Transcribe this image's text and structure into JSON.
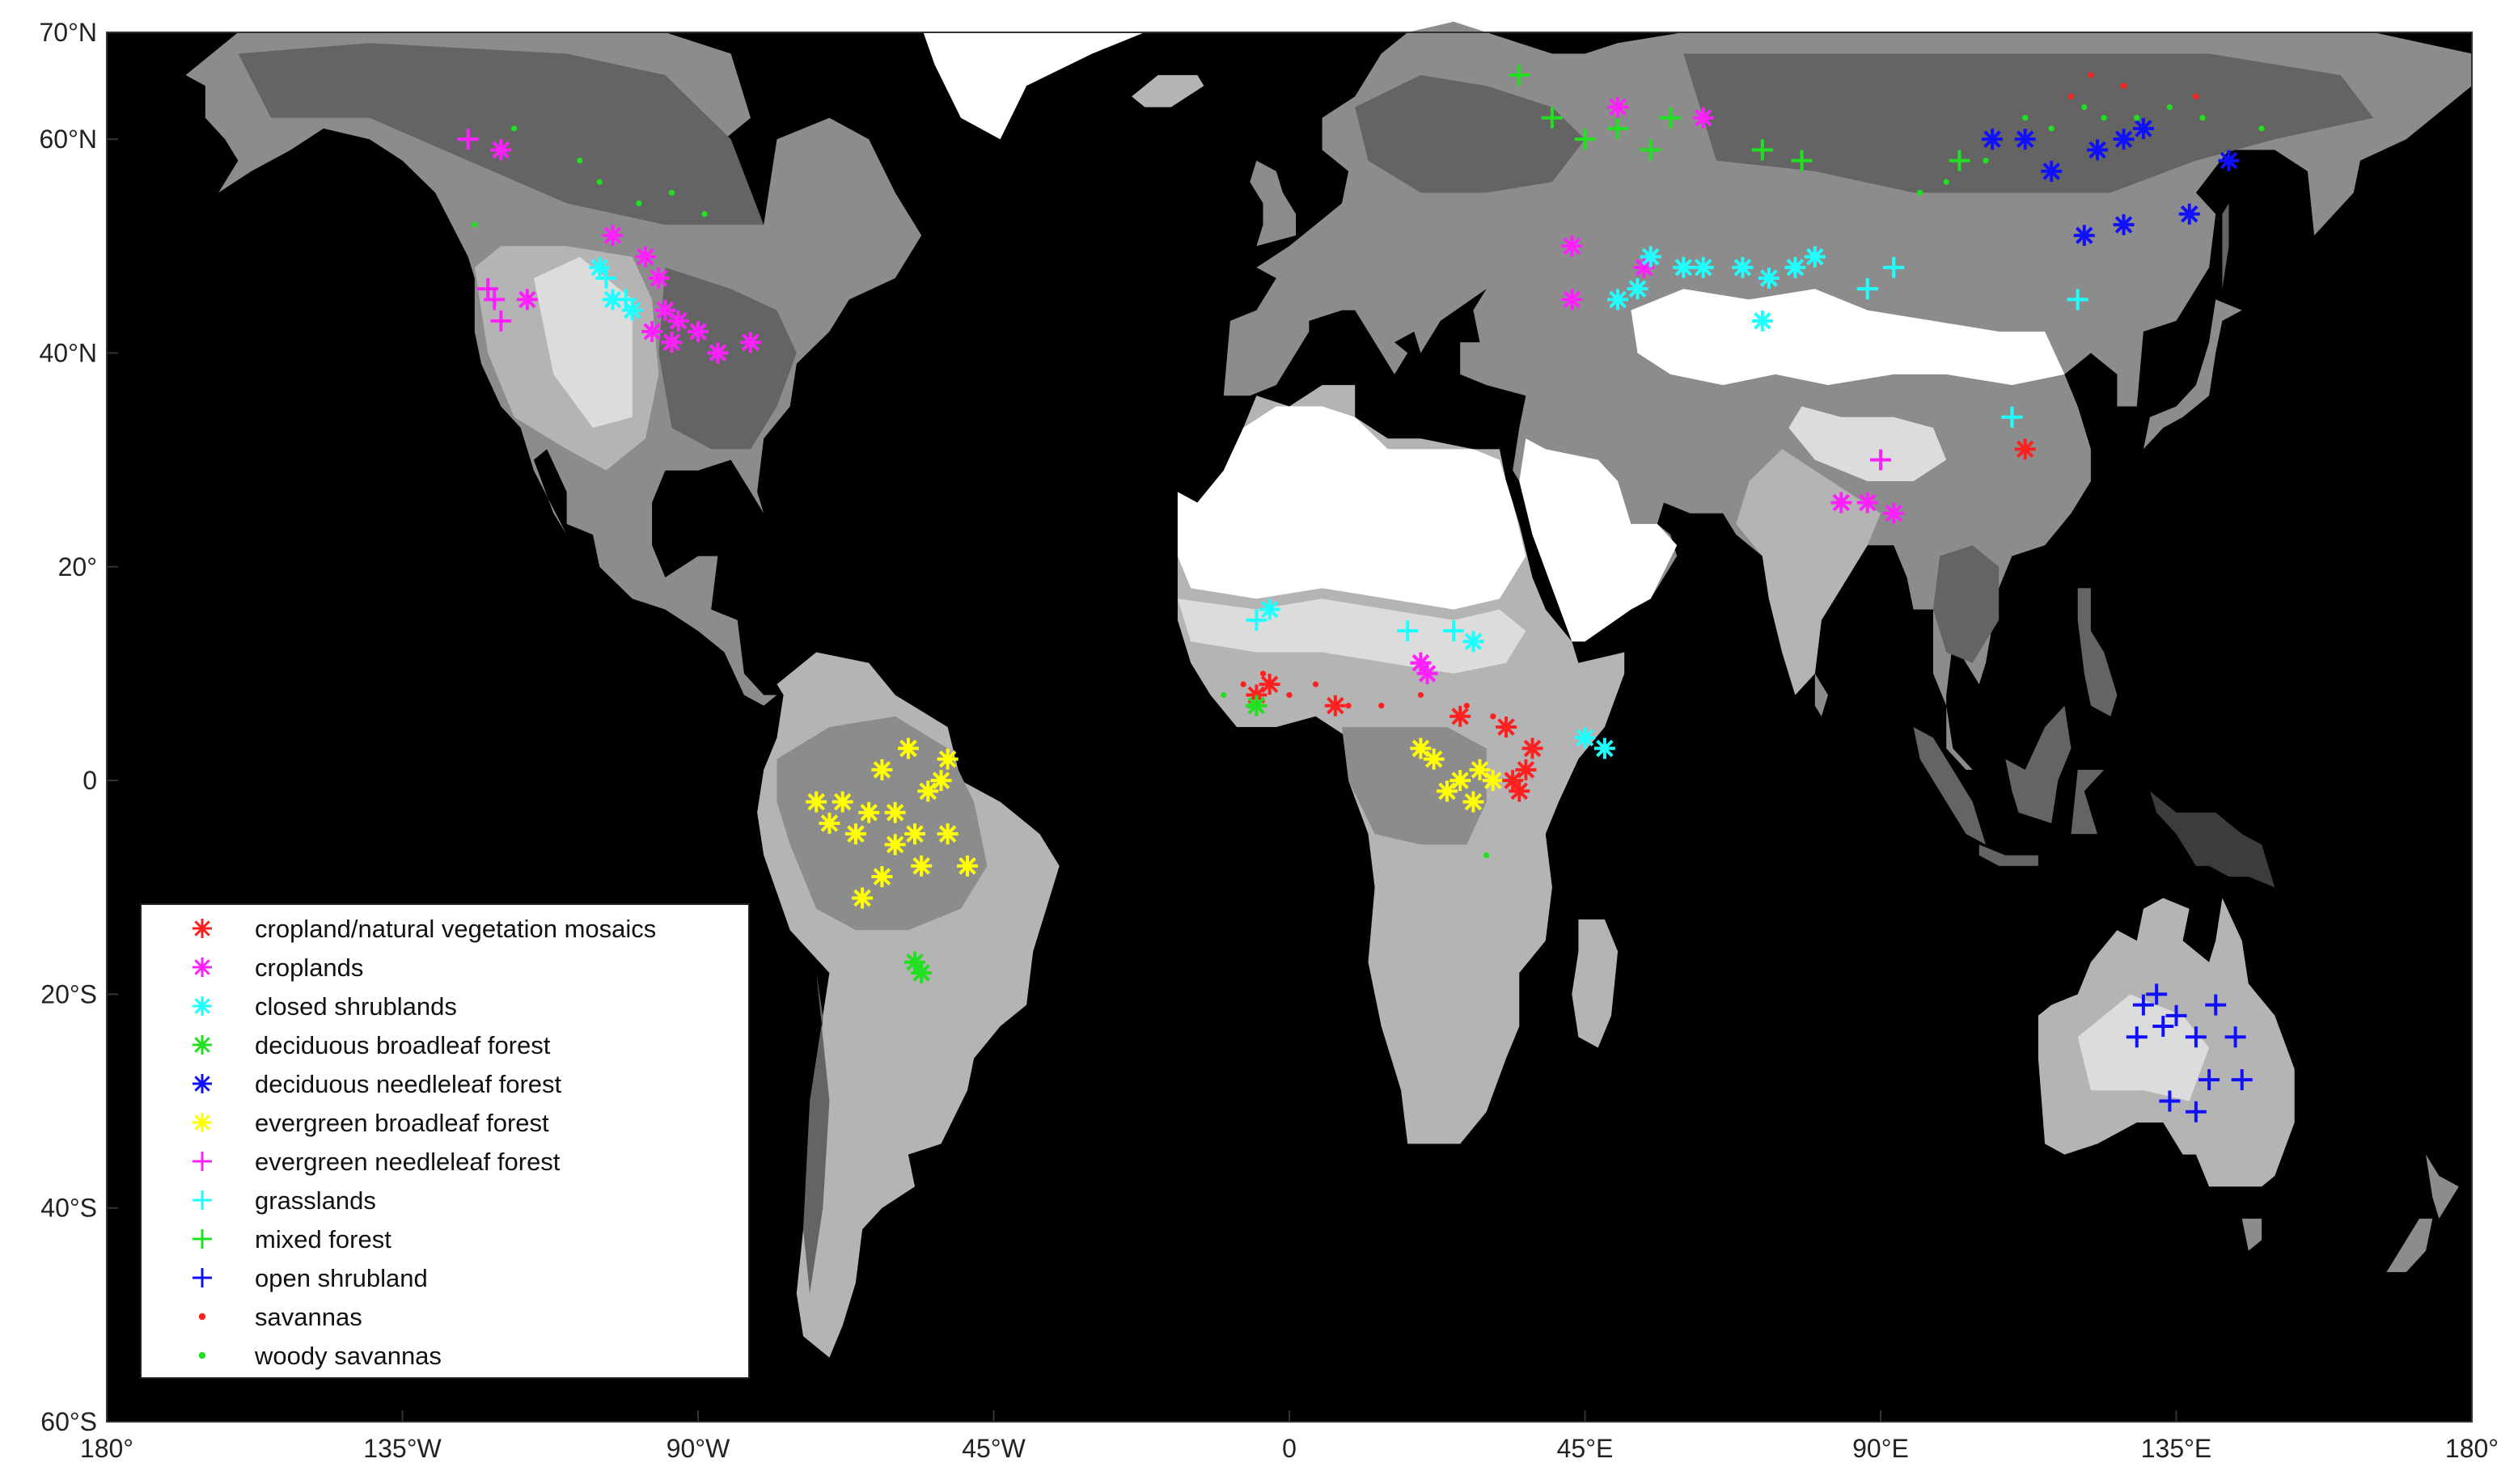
{
  "map": {
    "projection": "equirectangular",
    "lon_range": [
      -180,
      180
    ],
    "lat_range": [
      -60,
      70
    ],
    "background_color": "#000000",
    "land_shades": [
      "#ffffff",
      "#dcdcdc",
      "#b4b4b4",
      "#8c8c8c",
      "#646464",
      "#3c3c3c"
    ],
    "y_ticks": [
      {
        "lat": 70,
        "label": "70°N"
      },
      {
        "lat": 60,
        "label": "60°N"
      },
      {
        "lat": 40,
        "label": "40°N"
      },
      {
        "lat": 20,
        "label": "20°"
      },
      {
        "lat": 0,
        "label": "0"
      },
      {
        "lat": -20,
        "label": "20°S"
      },
      {
        "lat": -40,
        "label": "40°S"
      },
      {
        "lat": -60,
        "label": "60°S"
      }
    ],
    "x_ticks": [
      {
        "lon": -180,
        "label": "180°"
      },
      {
        "lon": -135,
        "label": "135°W"
      },
      {
        "lon": -90,
        "label": "90°W"
      },
      {
        "lon": -45,
        "label": "45°W"
      },
      {
        "lon": 0,
        "label": "0"
      },
      {
        "lon": 45,
        "label": "45°E"
      },
      {
        "lon": 90,
        "label": "90°E"
      },
      {
        "lon": 135,
        "label": "135°E"
      },
      {
        "lon": 180,
        "label": "180°"
      }
    ]
  },
  "legend": {
    "placement": "bottom-left",
    "items": [
      {
        "label": "cropland/natural vegetation mosaics",
        "color": "#ff2020",
        "marker": "asterisk"
      },
      {
        "label": "croplands",
        "color": "#ff20ff",
        "marker": "asterisk"
      },
      {
        "label": "closed shrublands",
        "color": "#20ffff",
        "marker": "asterisk"
      },
      {
        "label": "deciduous broadleaf forest",
        "color": "#20e020",
        "marker": "asterisk"
      },
      {
        "label": "deciduous needleleaf forest",
        "color": "#1010ff",
        "marker": "asterisk"
      },
      {
        "label": "evergreen broadleaf forest",
        "color": "#ffff00",
        "marker": "asterisk"
      },
      {
        "label": "evergreen needleleaf forest",
        "color": "#ff20ff",
        "marker": "plus"
      },
      {
        "label": "grasslands",
        "color": "#20ffff",
        "marker": "plus"
      },
      {
        "label": "mixed forest",
        "color": "#20e020",
        "marker": "plus"
      },
      {
        "label": "open shrubland",
        "color": "#1010ff",
        "marker": "plus"
      },
      {
        "label": "savannas",
        "color": "#ff2020",
        "marker": "dot"
      },
      {
        "label": "woody savannas",
        "color": "#20e020",
        "marker": "dot"
      }
    ]
  },
  "sites": [
    {
      "cls": "evergreen broadleaf forest",
      "pts": [
        [
          -58,
          3
        ],
        [
          -62,
          1
        ],
        [
          -55,
          -1
        ],
        [
          -52,
          2
        ],
        [
          -64,
          -3
        ],
        [
          -60,
          -6
        ],
        [
          -66,
          -5
        ],
        [
          -57,
          -5
        ],
        [
          -68,
          -2
        ],
        [
          -70,
          -4
        ],
        [
          -62,
          -9
        ],
        [
          -65,
          -11
        ],
        [
          -56,
          -8
        ],
        [
          -52,
          -5
        ],
        [
          -49,
          -8
        ],
        [
          -72,
          -2
        ],
        [
          -60,
          -3
        ],
        [
          -53,
          0
        ],
        [
          22,
          2
        ],
        [
          26,
          0
        ],
        [
          29,
          1
        ],
        [
          24,
          -1
        ],
        [
          20,
          3
        ],
        [
          28,
          -2
        ],
        [
          31,
          0
        ]
      ]
    },
    {
      "cls": "croplands",
      "pts": [
        [
          -98,
          49
        ],
        [
          -96,
          47
        ],
        [
          -95,
          44
        ],
        [
          -93,
          43
        ],
        [
          -90,
          42
        ],
        [
          -97,
          42
        ],
        [
          -103,
          51
        ],
        [
          -87,
          40
        ],
        [
          -82,
          41
        ],
        [
          -94,
          41
        ],
        [
          -120,
          59
        ],
        [
          -116,
          45
        ],
        [
          20,
          11
        ],
        [
          21,
          10
        ],
        [
          84,
          26
        ],
        [
          88,
          26
        ],
        [
          92,
          25
        ],
        [
          43,
          45
        ],
        [
          43,
          50
        ],
        [
          50,
          63
        ],
        [
          54,
          48
        ],
        [
          63,
          62
        ]
      ]
    },
    {
      "cls": "cropland/natural vegetation mosaics",
      "pts": [
        [
          36,
          1
        ],
        [
          37,
          3
        ],
        [
          34,
          0
        ],
        [
          33,
          5
        ],
        [
          35,
          -1
        ],
        [
          -5,
          8
        ],
        [
          -3,
          9
        ],
        [
          7,
          7
        ],
        [
          112,
          31
        ],
        [
          26,
          6
        ]
      ]
    },
    {
      "cls": "closed shrublands",
      "pts": [
        [
          -103,
          45
        ],
        [
          -100,
          44
        ],
        [
          -105,
          48
        ],
        [
          45,
          4
        ],
        [
          48,
          3
        ],
        [
          55,
          49
        ],
        [
          60,
          48
        ],
        [
          63,
          48
        ],
        [
          69,
          48
        ],
        [
          73,
          47
        ],
        [
          77,
          48
        ],
        [
          80,
          49
        ],
        [
          72,
          43
        ],
        [
          -3,
          16
        ],
        [
          28,
          13
        ],
        [
          50,
          45
        ],
        [
          53,
          46
        ]
      ]
    },
    {
      "cls": "deciduous broadleaf forest",
      "pts": [
        [
          -57,
          -17
        ],
        [
          -56,
          -18
        ],
        [
          -5,
          7
        ]
      ]
    },
    {
      "cls": "deciduous needleleaf forest",
      "pts": [
        [
          116,
          57
        ],
        [
          121,
          51
        ],
        [
          127,
          52
        ],
        [
          137,
          53
        ],
        [
          143,
          58
        ],
        [
          107,
          60
        ],
        [
          112,
          60
        ],
        [
          123,
          59
        ],
        [
          127,
          60
        ],
        [
          130,
          61
        ]
      ]
    },
    {
      "cls": "evergreen needleleaf forest",
      "pts": [
        [
          -121,
          45
        ],
        [
          -120,
          43
        ],
        [
          -122,
          46
        ],
        [
          -125,
          60
        ],
        [
          90,
          30
        ]
      ]
    },
    {
      "cls": "grasslands",
      "pts": [
        [
          -104,
          47
        ],
        [
          -101,
          45
        ],
        [
          88,
          46
        ],
        [
          92,
          48
        ],
        [
          110,
          34
        ],
        [
          120,
          45
        ],
        [
          18,
          14
        ],
        [
          25,
          14
        ],
        [
          -5,
          15
        ]
      ]
    },
    {
      "cls": "mixed forest",
      "pts": [
        [
          45,
          60
        ],
        [
          50,
          61
        ],
        [
          55,
          59
        ],
        [
          40,
          62
        ],
        [
          35,
          66
        ],
        [
          58,
          62
        ],
        [
          78,
          58
        ],
        [
          102,
          58
        ],
        [
          72,
          59
        ]
      ]
    },
    {
      "cls": "open shrubland",
      "pts": [
        [
          130,
          -21
        ],
        [
          133,
          -23
        ],
        [
          135,
          -22
        ],
        [
          138,
          -24
        ],
        [
          132,
          -20
        ],
        [
          144,
          -24
        ],
        [
          141,
          -21
        ],
        [
          134,
          -30
        ],
        [
          138,
          -31
        ],
        [
          140,
          -28
        ],
        [
          145,
          -28
        ],
        [
          129,
          -24
        ]
      ]
    },
    {
      "cls": "savannas",
      "pts": [
        [
          -7,
          9
        ],
        [
          -4,
          10
        ],
        [
          0,
          8
        ],
        [
          4,
          9
        ],
        [
          9,
          7
        ],
        [
          14,
          7
        ],
        [
          20,
          8
        ],
        [
          27,
          7
        ],
        [
          31,
          6
        ],
        [
          119,
          64
        ],
        [
          122,
          66
        ],
        [
          127,
          65
        ],
        [
          138,
          64
        ]
      ]
    },
    {
      "cls": "woody savannas",
      "pts": [
        [
          -124,
          52
        ],
        [
          -118,
          61
        ],
        [
          -108,
          58
        ],
        [
          -99,
          54
        ],
        [
          -94,
          55
        ],
        [
          -89,
          53
        ],
        [
          -105,
          56
        ],
        [
          96,
          55
        ],
        [
          100,
          56
        ],
        [
          106,
          58
        ],
        [
          112,
          62
        ],
        [
          116,
          61
        ],
        [
          121,
          63
        ],
        [
          124,
          62
        ],
        [
          129,
          62
        ],
        [
          134,
          63
        ],
        [
          139,
          62
        ],
        [
          148,
          61
        ],
        [
          30,
          -7
        ],
        [
          -6,
          7
        ],
        [
          -10,
          8
        ]
      ]
    }
  ]
}
